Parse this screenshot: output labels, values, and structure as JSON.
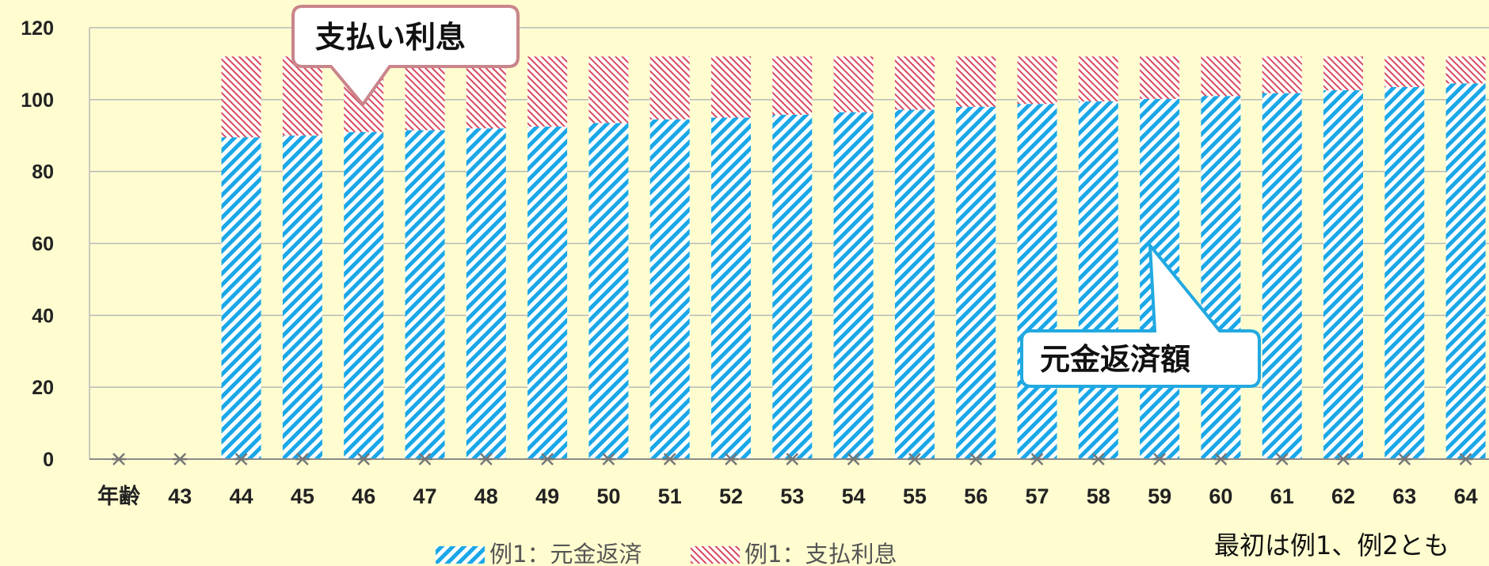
{
  "chart_data": {
    "type": "bar",
    "stacked": true,
    "categories": [
      "年齢",
      "43",
      "44",
      "45",
      "46",
      "47",
      "48",
      "49",
      "50",
      "51",
      "52",
      "53",
      "54",
      "55",
      "56",
      "57",
      "58",
      "59",
      "60",
      "61",
      "62",
      "63",
      "64"
    ],
    "series": [
      {
        "name": "例1：元金返済",
        "color": "#1AA7E8",
        "pattern": "hatch-backslash",
        "values": [
          0,
          0,
          89.5,
          90,
          91,
          91.5,
          92,
          92.5,
          93.5,
          94.5,
          95,
          95.8,
          96.5,
          97.2,
          98,
          98.8,
          99.5,
          100.2,
          101,
          101.8,
          102.6,
          103.5,
          104.5
        ]
      },
      {
        "name": "例1：支払利息",
        "color": "#D9495E",
        "pattern": "hatch-slash",
        "values": [
          0,
          0,
          22.5,
          22,
          21,
          20.5,
          20,
          19.5,
          18.5,
          17.5,
          17,
          16.2,
          15.5,
          14.8,
          14,
          13.2,
          12.5,
          11.8,
          11,
          10.2,
          9.4,
          8.5,
          7.5
        ]
      }
    ],
    "yticks": [
      "0",
      "20",
      "40",
      "60",
      "80",
      "100",
      "120"
    ],
    "ylim": [
      0,
      120
    ],
    "grid": true,
    "legend": "bottom",
    "annotations": {
      "interest_callout": "支払い利息",
      "principal_callout": "元金返済額"
    },
    "note": "最初は例1、例2とも"
  }
}
